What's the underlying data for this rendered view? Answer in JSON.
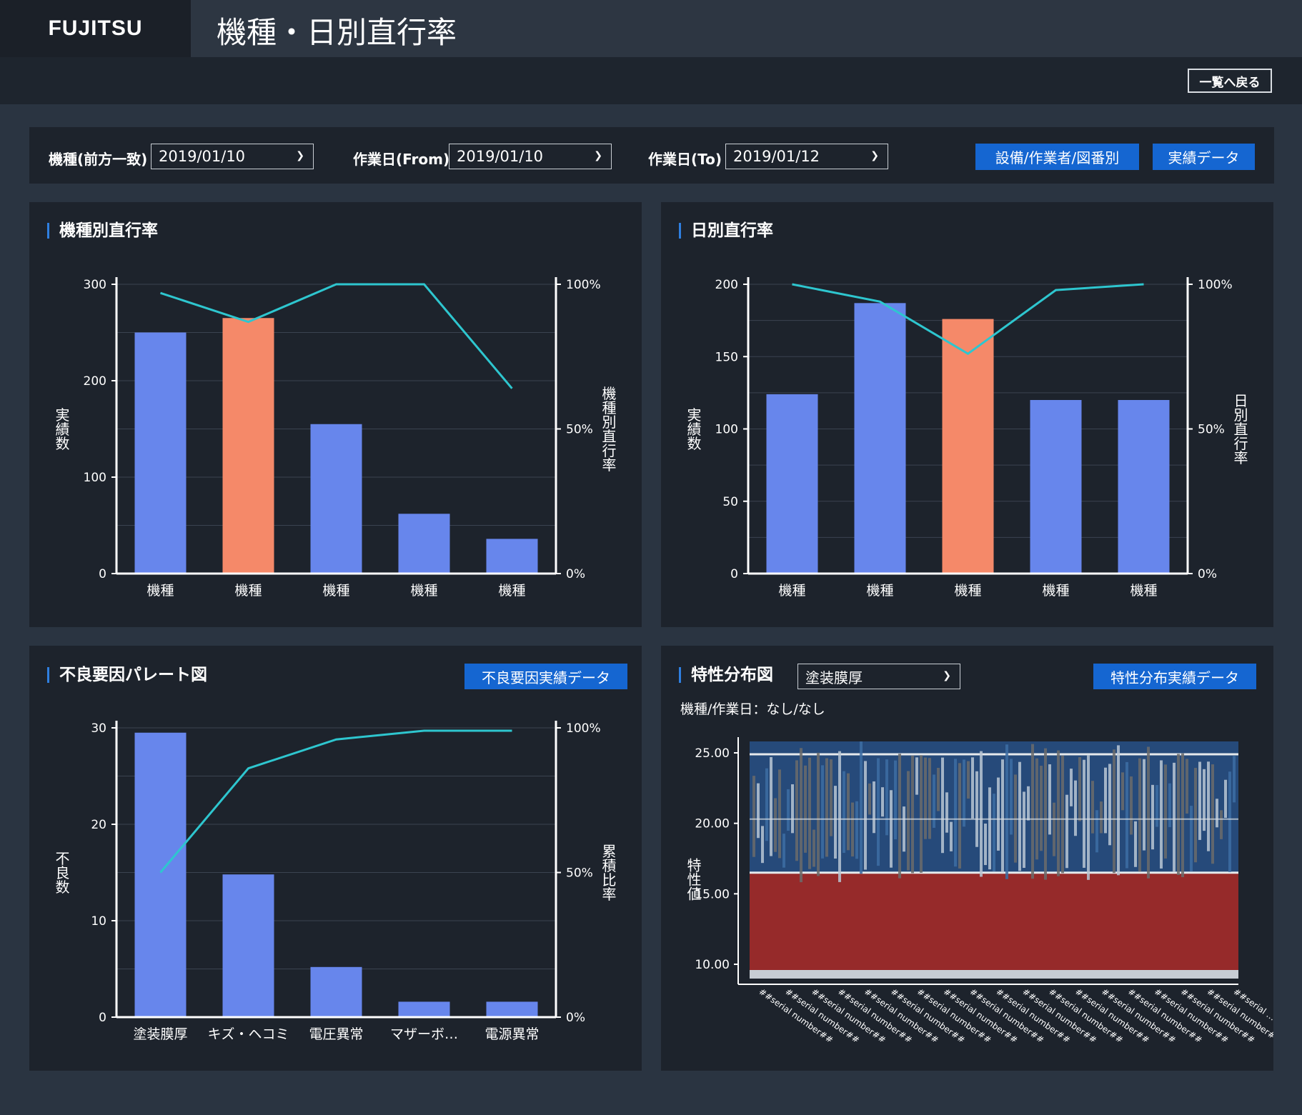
{
  "brand": "FUJITSU",
  "page_title": "機種・日別直行率",
  "back_button": "一覧へ戻る",
  "filters": {
    "model_label": "機種(前方一致)",
    "model_value": "2019/01/10",
    "from_label": "作業日(From)",
    "from_value": "2019/01/10",
    "to_label": "作業日(To)",
    "to_value": "2019/01/12",
    "equipment_button": "設備/作業者/図番別",
    "results_button": "実績データ"
  },
  "colors": {
    "bar_normal": "#6786ec",
    "bar_highlight": "#f58969",
    "line": "#2ec6cf",
    "panel_bg": "#1d232c",
    "accent_blue": "#1566d1"
  },
  "panels": {
    "model_rate": {
      "title": "機種別直行率"
    },
    "daily_rate": {
      "title": "日別直行率"
    },
    "pareto": {
      "title": "不良要因パレート図",
      "button": "不良要因実績データ"
    },
    "distribution": {
      "title": "特性分布図",
      "select_value": "塗装膜厚",
      "button": "特性分布実績データ",
      "subtitle": "機種/作業日：なし/なし"
    }
  },
  "chart_data": [
    {
      "id": "model_rate",
      "type": "bar",
      "title": "機種別直行率",
      "categories": [
        "機種",
        "機種",
        "機種",
        "機種",
        "機種"
      ],
      "values": [
        250,
        265,
        155,
        62,
        36
      ],
      "highlight": [
        false,
        true,
        false,
        false,
        false
      ],
      "line_values": [
        97,
        87,
        100,
        100,
        64
      ],
      "ylabel": "実績数",
      "y2label": "機種別直行率",
      "ylim": [
        0,
        300
      ],
      "yticks": [
        "0",
        "100",
        "200",
        "300"
      ],
      "y2ticks": [
        "0%",
        "50%",
        "100%"
      ],
      "grid": true
    },
    {
      "id": "daily_rate",
      "type": "bar",
      "title": "日別直行率",
      "categories": [
        "機種",
        "機種",
        "機種",
        "機種",
        "機種"
      ],
      "values": [
        124,
        187,
        176,
        120,
        120
      ],
      "highlight": [
        false,
        false,
        true,
        false,
        false
      ],
      "line_values": [
        100,
        94,
        76,
        98,
        100
      ],
      "ylabel": "実績数",
      "y2label": "日別直行率",
      "ylim": [
        0,
        200
      ],
      "yticks": [
        "0",
        "50",
        "100",
        "150",
        "200"
      ],
      "y2ticks": [
        "0%",
        "50%",
        "100%"
      ],
      "grid": true
    },
    {
      "id": "pareto",
      "type": "bar",
      "title": "不良要因パレート図",
      "categories": [
        "塗装膜厚",
        "キズ・ヘコミ",
        "電圧異常",
        "マザーボ…",
        "電源異常"
      ],
      "values": [
        29.5,
        14.8,
        5.2,
        1.6,
        1.6
      ],
      "highlight": [
        false,
        false,
        false,
        false,
        false
      ],
      "line_values": [
        50,
        86,
        96,
        99,
        99
      ],
      "ylabel": "不良数",
      "y2label": "累積比率",
      "ylim": [
        0,
        30
      ],
      "yticks": [
        "0",
        "10",
        "20",
        "30"
      ],
      "y2ticks": [
        "0%",
        "50%",
        "100%"
      ],
      "grid": true
    },
    {
      "id": "distribution",
      "type": "heatmap",
      "title": "特性分布図",
      "ylabel": "特性値",
      "ylim": [
        10,
        25
      ],
      "yticks": [
        "10.00",
        "15.00",
        "20.00",
        "25.00"
      ],
      "x_labels": [
        "##serial number##",
        "##serial number##",
        "##serial number##",
        "##serial number##",
        "##serial number##",
        "##serial number##",
        "##serial number##",
        "##serial number##",
        "##serial number##",
        "##serial number##",
        "##serial number##",
        "##serial number##",
        "##serial number##",
        "##serial number##",
        "##serial number##",
        "##serial number##",
        "##serial number##",
        "##serial number##",
        "##serial …"
      ]
    }
  ]
}
